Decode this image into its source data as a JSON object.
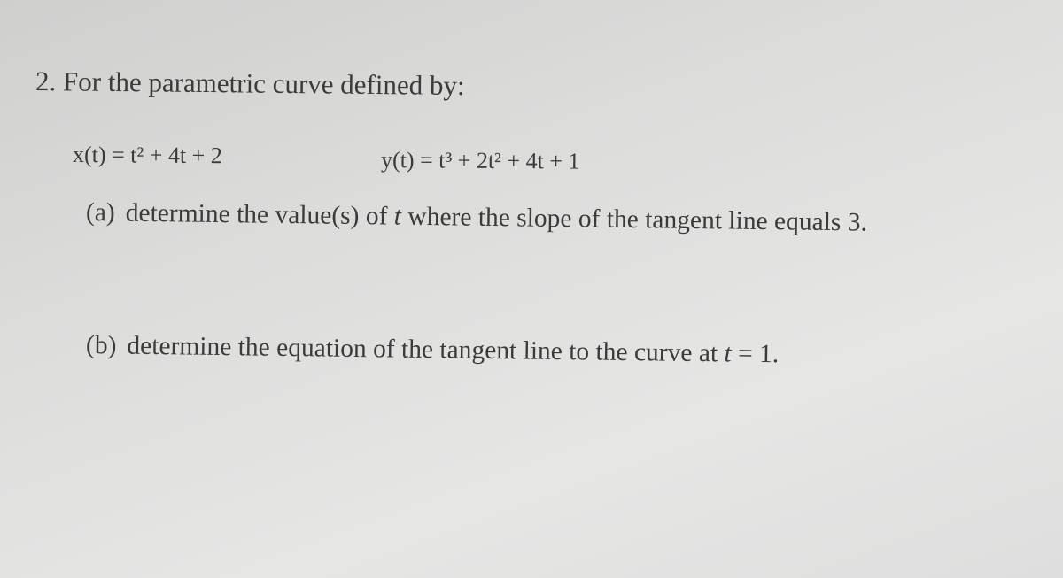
{
  "problem": {
    "number": "2.",
    "intro": "For the parametric curve defined by:",
    "equations": [
      "x(t) = t² + 4t + 2",
      "y(t) = t³ + 2t² + 4t + 1"
    ],
    "parts": [
      {
        "label": "(a)",
        "text": [
          "determine the value(s) of ",
          "t",
          " where the slope of the tangent line equals 3."
        ]
      },
      {
        "label": "(b)",
        "text": [
          "determine the equation of the tangent line to the curve at ",
          "t",
          " = 1."
        ]
      }
    ]
  }
}
